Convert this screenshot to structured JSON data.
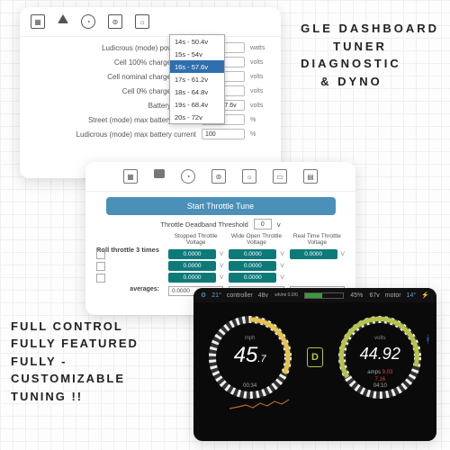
{
  "tagline_top": {
    "l1": "GLE DASHBOARD",
    "l2": "TUNER",
    "l3": "DIAGNOSTIC",
    "l4": "& DYNO"
  },
  "tagline_bottom": {
    "l1": "FULL CONTROL",
    "l2": "FULLY FEATURED",
    "l3": "FULLY -",
    "l4": "CUSTOMIZABLE",
    "l5": "TUNING !!"
  },
  "panel1": {
    "rows": [
      {
        "label": "Ludicrous (mode) power level",
        "value": "",
        "unit": "watts"
      },
      {
        "label": "Cell 100% charge voltage",
        "value": "",
        "unit": "volts"
      },
      {
        "label": "Cell nominal charge voltage",
        "value": "",
        "unit": "volts"
      },
      {
        "label": "Cell 0% charge voltage",
        "value": "",
        "unit": "volts"
      },
      {
        "label": "Battery voltage",
        "value": "16s - 57.6v",
        "unit": "volts"
      },
      {
        "label": "Street (mode) max battery current",
        "value": "100",
        "unit": "%"
      },
      {
        "label": "Ludicrous (mode) max battery current",
        "value": "100",
        "unit": "%"
      }
    ],
    "dropdown": [
      "14s - 50.4v",
      "15s - 54v",
      "16s - 57.6v",
      "17s - 61.2v",
      "18s - 64.8v",
      "19s - 68.4v",
      "20s - 72v"
    ],
    "dropdown_selected_index": 2
  },
  "panel2": {
    "start_button": "Start Throttle Tune",
    "threshold_label": "Throttle Deadband Threshold",
    "threshold_value": "0",
    "threshold_unit": "v",
    "lead": "Roll throttle 3 times",
    "avg_label": "averages:",
    "columns": [
      {
        "header": "Stopped Throttle Voltage",
        "vals": [
          "0.0000",
          "0.0000",
          "0.0000"
        ],
        "avg": "0.0000"
      },
      {
        "header": "Wide Open Throttle Voltage",
        "vals": [
          "0.0000",
          "0.0000",
          "0.0000"
        ],
        "avg": "0.0000"
      },
      {
        "header": "Real Time Throttle Voltage",
        "vals": [
          "0.0000"
        ],
        "avg": ""
      }
    ],
    "val_bg": "#0d7a7a",
    "unit": "V"
  },
  "panel3": {
    "top": {
      "gear_temp": "21°",
      "volts": "48v",
      "pct": "45%",
      "ctrl_v": "67v",
      "motor_temp": "14°",
      "ctrl_label": "controller",
      "motor_label": "motor",
      "wh_label": "wh/mi  0.0/0"
    },
    "gauge_left": {
      "value": "45",
      "dec": ".7",
      "unit": "mph",
      "sub": "00:34",
      "ticks_color": "#f5f5f5",
      "arc_color": "#e6c34a"
    },
    "gauge_right": {
      "value": "44.92",
      "unit": "volts",
      "sub1_label": "amps",
      "sub1_val": "9.03",
      "sub2_val": "7.16",
      "sub3": "04:10",
      "ticks_color": "#f5f5f5",
      "arc_color": "#b7c24a"
    },
    "drive_mode": "D",
    "spark_color": "#b96a2a"
  }
}
